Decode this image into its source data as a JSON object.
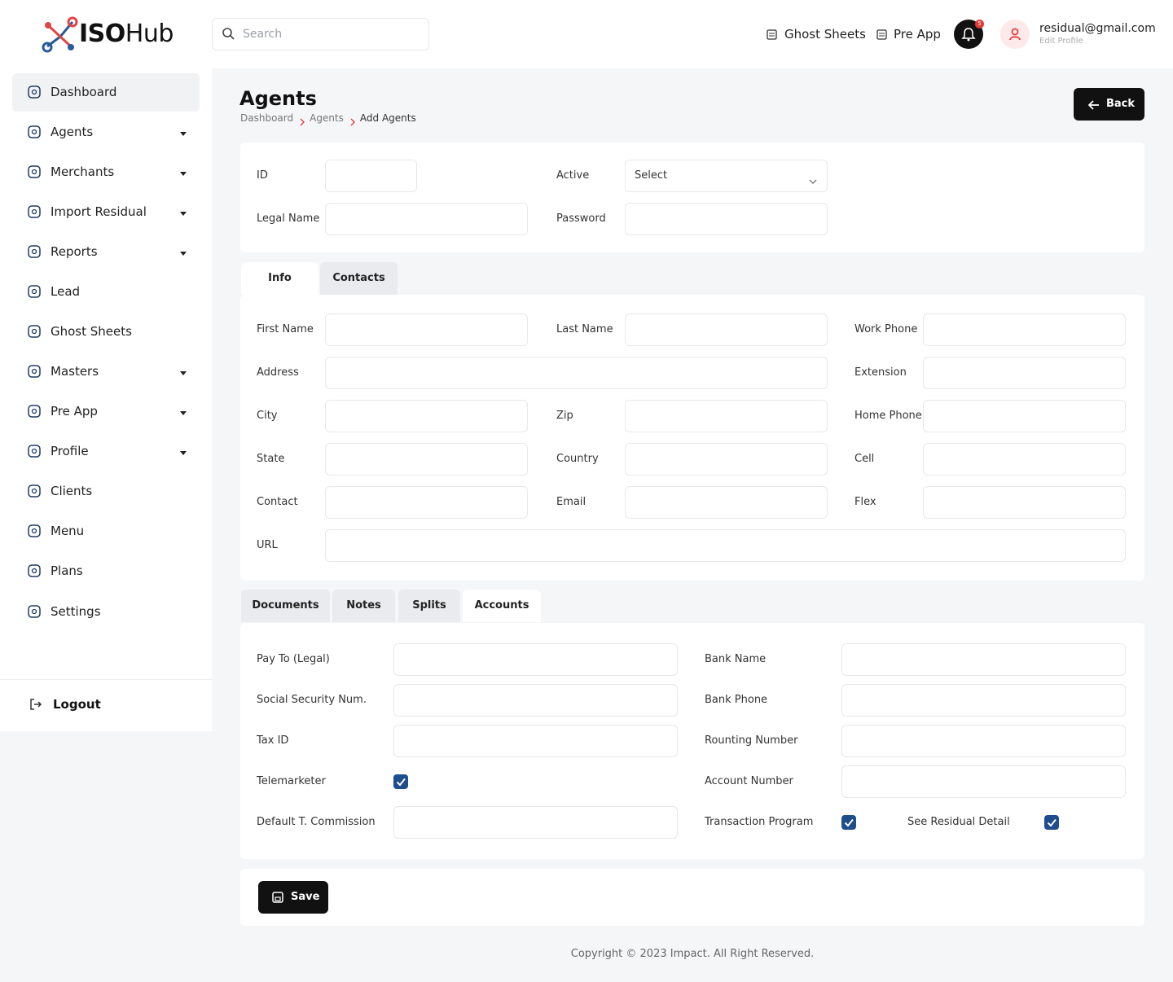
{
  "header": {
    "logo": {
      "bold": "ISO",
      "light": "Hub"
    },
    "search_placeholder": "Search",
    "links": [
      "Ghost Sheets",
      "Pre App"
    ],
    "notification_count": 5,
    "user": {
      "email": "residual@gmail.com",
      "subtitle": "Edit Profile"
    }
  },
  "sidebar": {
    "items": [
      {
        "label": "Dashboard",
        "active": true,
        "dropdown": false
      },
      {
        "label": "Agents",
        "active": false,
        "dropdown": true
      },
      {
        "label": "Merchants",
        "active": false,
        "dropdown": true
      },
      {
        "label": "Import Residual",
        "active": false,
        "dropdown": true
      },
      {
        "label": "Reports",
        "active": false,
        "dropdown": true
      },
      {
        "label": "Lead",
        "active": false,
        "dropdown": false
      },
      {
        "label": "Ghost Sheets",
        "active": false,
        "dropdown": false
      },
      {
        "label": "Masters",
        "active": false,
        "dropdown": true
      },
      {
        "label": "Pre App",
        "active": false,
        "dropdown": true
      },
      {
        "label": "Profile",
        "active": false,
        "dropdown": true
      },
      {
        "label": "Clients",
        "active": false,
        "dropdown": false
      },
      {
        "label": "Menu",
        "active": false,
        "dropdown": false
      },
      {
        "label": "Plans",
        "active": false,
        "dropdown": false
      },
      {
        "label": "Settings",
        "active": false,
        "dropdown": false
      }
    ],
    "logout": "Logout"
  },
  "page": {
    "title": "Agents",
    "breadcrumb": [
      "Dashboard",
      "Agents",
      "Add Agents"
    ],
    "back_button": "Back"
  },
  "top_form": [
    {
      "label": "ID"
    },
    {
      "label": "Active",
      "select": "Select"
    },
    {
      "label": "Legal Name"
    },
    {
      "label": "Password"
    }
  ],
  "info_tabs": {
    "tabs": [
      "Info",
      "Contacts"
    ],
    "active": 0
  },
  "info_fields": [
    "First Name",
    "Last Name",
    "Work Phone",
    "Address",
    "Extension",
    "City",
    "Zip",
    "Home Phone",
    "State",
    "Country",
    "Cell",
    "Contact",
    "Email",
    "Flex",
    "URL"
  ],
  "account_tabs": {
    "tabs": [
      "Documents",
      "Notes",
      "Splits",
      "Accounts"
    ],
    "active": 3
  },
  "account_fields": [
    {
      "label": "Pay To (Legal)"
    },
    {
      "label": "Bank Name"
    },
    {
      "label": "Social Security Num."
    },
    {
      "label": "Bank Phone"
    },
    {
      "label": "Tax ID"
    },
    {
      "label": "Rounting Number"
    },
    {
      "label": "Telemarketer",
      "checked": true
    },
    {
      "label": "Account Number"
    },
    {
      "label": "Default T. Commission"
    },
    {
      "label": "Transaction Program",
      "checked": true
    },
    {
      "label": "See Residual Detail",
      "checked": true
    }
  ],
  "save_button": "Save",
  "footer": "Copyright © 2023 Impact. All Right Reserved."
}
